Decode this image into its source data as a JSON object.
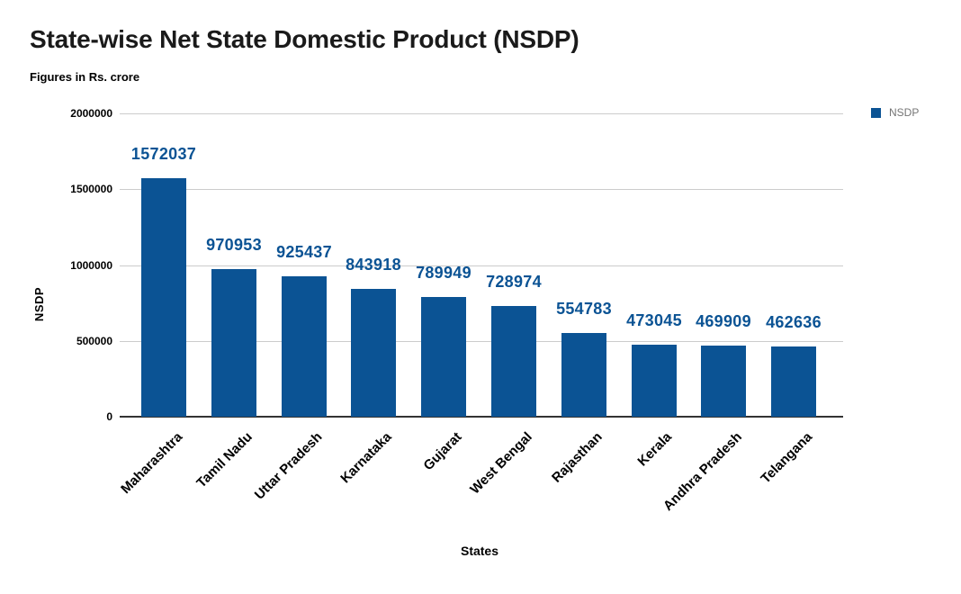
{
  "chart_data": {
    "type": "bar",
    "title": "State-wise Net State Domestic Product (NSDP)",
    "subtitle": "Figures in Rs. crore",
    "categories": [
      "Maharashtra",
      "Tamil Nadu",
      "Uttar Pradesh",
      "Karnataka",
      "Gujarat",
      "West Bengal",
      "Rajasthan",
      "Kerala",
      "Andhra Pradesh",
      "Telangana"
    ],
    "series": [
      {
        "name": "NSDP",
        "values": [
          1572037,
          970953,
          925437,
          843918,
          789949,
          728974,
          554783,
          473045,
          469909,
          462636
        ]
      }
    ],
    "xlabel": "States",
    "ylabel": "NSDP",
    "ylim": [
      0,
      2000000
    ],
    "yticks": [
      0,
      500000,
      1000000,
      1500000,
      2000000
    ],
    "ytick_labels": [
      "0",
      "500000",
      "1000000",
      "1500000",
      "2000000"
    ],
    "grid": true,
    "legend_position": "top-right",
    "bar_color": "#0b5394",
    "value_label_color": "#0b5394",
    "gridline_color": "#cccccc",
    "axis_line_color": "#333333",
    "legend_text_color": "#757575"
  }
}
